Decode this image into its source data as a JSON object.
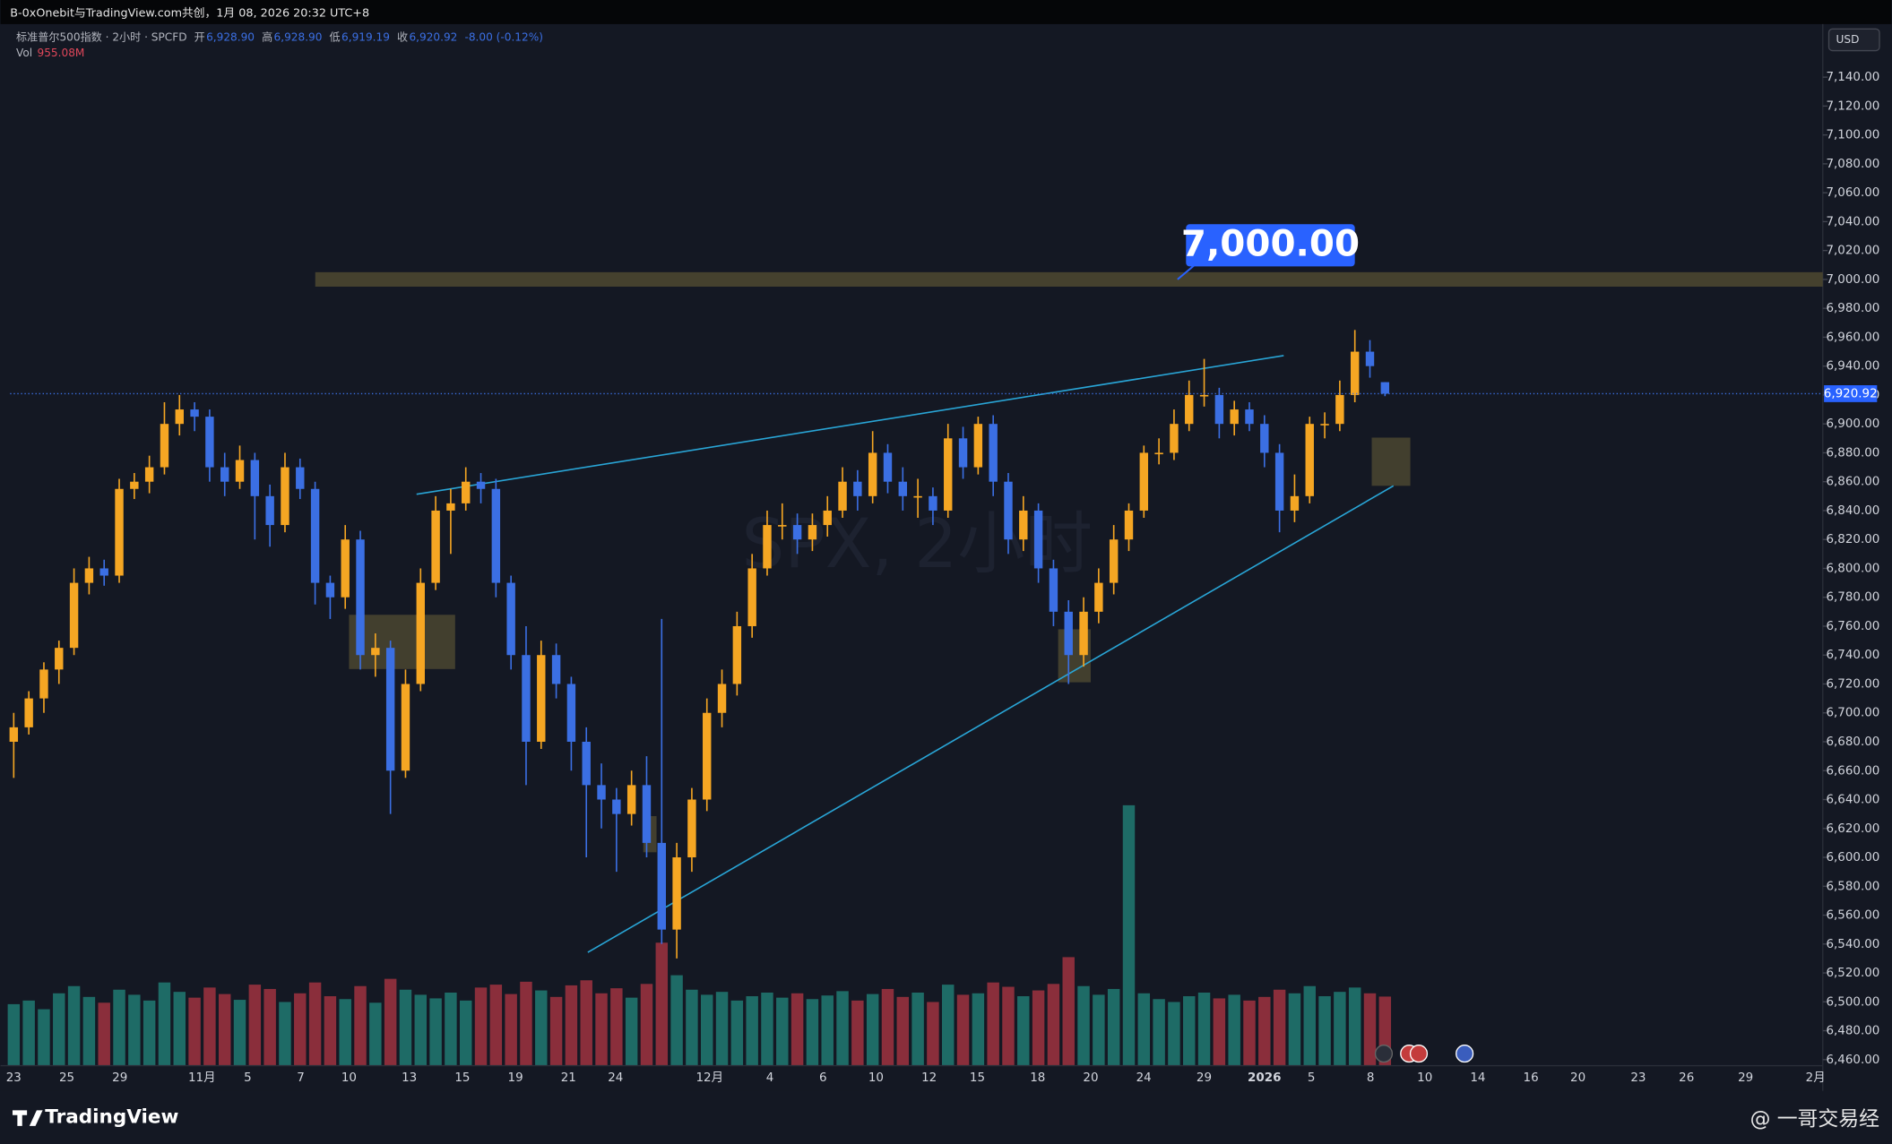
{
  "header": {
    "share_text": "B-0xOnebit与TradingView.com共创，1月 08, 2026 20:32 UTC+8"
  },
  "legend": {
    "symbol": "标准普尔500指数 · 2小时 · SPCFD",
    "fields": [
      {
        "label": "开",
        "value": "6,928.90"
      },
      {
        "label": "高",
        "value": "6,928.90"
      },
      {
        "label": "低",
        "value": "6,919.19"
      },
      {
        "label": "收",
        "value": "6,920.92"
      }
    ],
    "change": "-8.00 (-0.12%)",
    "vol_label": "Vol",
    "vol_value": "955.08M"
  },
  "chart_data": {
    "type": "candlestick",
    "currency": "USD",
    "watermark": "SPX, 2小时",
    "ylim": [
      6453,
      7165
    ],
    "yticks": [
      {
        "value": 6460,
        "label": "6,460.00"
      },
      {
        "value": 6480,
        "label": "6,480.00"
      },
      {
        "value": 6500,
        "label": "6,500.00"
      },
      {
        "value": 6520,
        "label": "6,520.00"
      },
      {
        "value": 6540,
        "label": "6,540.00"
      },
      {
        "value": 6560,
        "label": "6,560.00"
      },
      {
        "value": 6580,
        "label": "6,580.00"
      },
      {
        "value": 6600,
        "label": "6,600.00"
      },
      {
        "value": 6620,
        "label": "6,620.00"
      },
      {
        "value": 6640,
        "label": "6,640.00"
      },
      {
        "value": 6660,
        "label": "6,660.00"
      },
      {
        "value": 6680,
        "label": "6,680.00"
      },
      {
        "value": 6700,
        "label": "6,700.00"
      },
      {
        "value": 6720,
        "label": "6,720.00"
      },
      {
        "value": 6740,
        "label": "6,740.00"
      },
      {
        "value": 6760,
        "label": "6,760.00"
      },
      {
        "value": 6780,
        "label": "6,780.00"
      },
      {
        "value": 6800,
        "label": "6,800.00"
      },
      {
        "value": 6820,
        "label": "6,820.00"
      },
      {
        "value": 6840,
        "label": "6,840.00"
      },
      {
        "value": 6860,
        "label": "6,860.00"
      },
      {
        "value": 6880,
        "label": "6,880.00"
      },
      {
        "value": 6900,
        "label": "6,900.00"
      },
      {
        "value": 6920,
        "label": "6,920.00"
      },
      {
        "value": 6940,
        "label": "6,940.00"
      },
      {
        "value": 6960,
        "label": "6,960.00"
      },
      {
        "value": 6980,
        "label": "6,980.00"
      },
      {
        "value": 7000,
        "label": "7,000.00"
      },
      {
        "value": 7020,
        "label": "7,020.00"
      },
      {
        "value": 7040,
        "label": "7,040.00"
      },
      {
        "value": 7060,
        "label": "7,060.00"
      },
      {
        "value": 7080,
        "label": "7,080.00"
      },
      {
        "value": 7100,
        "label": "7,100.00"
      },
      {
        "value": 7120,
        "label": "7,120.00"
      },
      {
        "value": 7140,
        "label": "7,140.00"
      }
    ],
    "xtick_labels": [
      "23",
      "25",
      "29",
      "11月",
      "5",
      "7",
      "10",
      "13",
      "15",
      "19",
      "21",
      "24",
      "12月",
      "4",
      "6",
      "10",
      "12",
      "15",
      "18",
      "20",
      "24",
      "29",
      "2026",
      "5",
      "8",
      "10",
      "14",
      "16",
      "20",
      "23",
      "26",
      "29",
      "2月"
    ],
    "level": {
      "value": 7000,
      "label": "7,000.00"
    },
    "last_price": {
      "value": 6920.92,
      "label": "6,920.92"
    },
    "series": [
      {
        "up_color": "#f5a623",
        "down_color": "#3b6fe3",
        "values": [
          [
            6680,
            6700,
            6655,
            6690
          ],
          [
            6690,
            6715,
            6685,
            6710
          ],
          [
            6710,
            6735,
            6700,
            6730
          ],
          [
            6730,
            6750,
            6720,
            6745
          ],
          [
            6745,
            6800,
            6740,
            6790
          ],
          [
            6790,
            6808,
            6782,
            6800
          ],
          [
            6800,
            6806,
            6788,
            6795
          ],
          [
            6795,
            6862,
            6790,
            6855
          ],
          [
            6855,
            6866,
            6848,
            6860
          ],
          [
            6860,
            6878,
            6852,
            6870
          ],
          [
            6870,
            6915,
            6865,
            6900
          ],
          [
            6900,
            6920,
            6892,
            6910
          ],
          [
            6910,
            6915,
            6895,
            6905
          ],
          [
            6905,
            6910,
            6860,
            6870
          ],
          [
            6870,
            6880,
            6850,
            6860
          ],
          [
            6860,
            6885,
            6855,
            6875
          ],
          [
            6875,
            6880,
            6820,
            6850
          ],
          [
            6850,
            6858,
            6815,
            6830
          ],
          [
            6830,
            6880,
            6825,
            6870
          ],
          [
            6870,
            6876,
            6848,
            6855
          ],
          [
            6855,
            6860,
            6775,
            6790
          ],
          [
            6790,
            6795,
            6765,
            6780
          ],
          [
            6780,
            6830,
            6772,
            6820
          ],
          [
            6820,
            6826,
            6730,
            6740
          ],
          [
            6740,
            6755,
            6725,
            6745
          ],
          [
            6745,
            6750,
            6630,
            6660
          ],
          [
            6660,
            6730,
            6655,
            6720
          ],
          [
            6720,
            6800,
            6715,
            6790
          ],
          [
            6790,
            6850,
            6785,
            6840
          ],
          [
            6840,
            6855,
            6810,
            6845
          ],
          [
            6845,
            6870,
            6840,
            6860
          ],
          [
            6860,
            6866,
            6845,
            6855
          ],
          [
            6855,
            6862,
            6780,
            6790
          ],
          [
            6790,
            6795,
            6730,
            6740
          ],
          [
            6740,
            6760,
            6650,
            6680
          ],
          [
            6680,
            6750,
            6675,
            6740
          ],
          [
            6740,
            6748,
            6710,
            6720
          ],
          [
            6720,
            6725,
            6660,
            6680
          ],
          [
            6680,
            6690,
            6600,
            6650
          ],
          [
            6650,
            6665,
            6620,
            6640
          ],
          [
            6640,
            6648,
            6590,
            6630
          ],
          [
            6630,
            6660,
            6622,
            6650
          ],
          [
            6650,
            6670,
            6600,
            6610
          ],
          [
            6610,
            6765,
            6540,
            6550
          ],
          [
            6550,
            6610,
            6530,
            6600
          ],
          [
            6600,
            6648,
            6590,
            6640
          ],
          [
            6640,
            6710,
            6632,
            6700
          ],
          [
            6700,
            6730,
            6690,
            6720
          ],
          [
            6720,
            6770,
            6712,
            6760
          ],
          [
            6760,
            6810,
            6752,
            6800
          ],
          [
            6800,
            6840,
            6795,
            6830
          ],
          [
            6830,
            6845,
            6820,
            6830
          ],
          [
            6830,
            6838,
            6810,
            6820
          ],
          [
            6820,
            6838,
            6812,
            6830
          ],
          [
            6830,
            6850,
            6822,
            6840
          ],
          [
            6840,
            6870,
            6835,
            6860
          ],
          [
            6860,
            6868,
            6840,
            6850
          ],
          [
            6850,
            6895,
            6845,
            6880
          ],
          [
            6880,
            6886,
            6852,
            6860
          ],
          [
            6860,
            6870,
            6840,
            6850
          ],
          [
            6850,
            6862,
            6835,
            6850
          ],
          [
            6850,
            6856,
            6830,
            6840
          ],
          [
            6840,
            6900,
            6835,
            6890
          ],
          [
            6890,
            6898,
            6862,
            6870
          ],
          [
            6870,
            6905,
            6865,
            6900
          ],
          [
            6900,
            6906,
            6850,
            6860
          ],
          [
            6860,
            6866,
            6810,
            6820
          ],
          [
            6820,
            6850,
            6812,
            6840
          ],
          [
            6840,
            6845,
            6790,
            6800
          ],
          [
            6800,
            6806,
            6760,
            6770
          ],
          [
            6770,
            6778,
            6720,
            6740
          ],
          [
            6740,
            6780,
            6732,
            6770
          ],
          [
            6770,
            6800,
            6762,
            6790
          ],
          [
            6790,
            6830,
            6782,
            6820
          ],
          [
            6820,
            6845,
            6812,
            6840
          ],
          [
            6840,
            6885,
            6835,
            6880
          ],
          [
            6880,
            6890,
            6872,
            6880
          ],
          [
            6880,
            6910,
            6875,
            6900
          ],
          [
            6900,
            6930,
            6895,
            6920
          ],
          [
            6920,
            6945,
            6912,
            6920
          ],
          [
            6920,
            6925,
            6890,
            6900
          ],
          [
            6900,
            6916,
            6892,
            6910
          ],
          [
            6910,
            6915,
            6895,
            6900
          ],
          [
            6900,
            6906,
            6870,
            6880
          ],
          [
            6880,
            6886,
            6825,
            6840
          ],
          [
            6840,
            6865,
            6832,
            6850
          ],
          [
            6850,
            6905,
            6845,
            6900
          ],
          [
            6900,
            6908,
            6890,
            6900
          ],
          [
            6900,
            6930,
            6895,
            6920
          ],
          [
            6920,
            6965,
            6915,
            6950
          ],
          [
            6950,
            6958,
            6932,
            6940
          ],
          [
            6928.9,
            6928.9,
            6919.19,
            6920.92
          ]
        ]
      }
    ],
    "volume": {
      "up_color": "#1e6b66",
      "down_color": "#8a2e3b",
      "values": [
        850,
        900,
        780,
        1000,
        1100,
        950,
        870,
        1050,
        980,
        900,
        1150,
        1020,
        940,
        1080,
        990,
        910,
        1120,
        1060,
        880,
        1000,
        1150,
        960,
        920,
        1100,
        870,
        1200,
        1050,
        980,
        930,
        1010,
        900,
        1080,
        1120,
        990,
        1160,
        1040,
        950,
        1110,
        1180,
        1000,
        1070,
        940,
        1130,
        1700,
        1250,
        1050,
        980,
        1020,
        900,
        960,
        1010,
        940,
        1000,
        920,
        970,
        1030,
        900,
        990,
        1060,
        950,
        1010,
        880,
        1120,
        980,
        1000,
        1150,
        1090,
        960,
        1040,
        1130,
        1500,
        1100,
        980,
        1060,
        3600,
        1000,
        920,
        880,
        960,
        1010,
        930,
        980,
        900,
        950,
        1050,
        1000,
        1100,
        960,
        1020,
        1080,
        1000,
        955.08
      ]
    }
  },
  "footer": {
    "brand": "TradingView",
    "credit": "@ 一哥交易经"
  }
}
